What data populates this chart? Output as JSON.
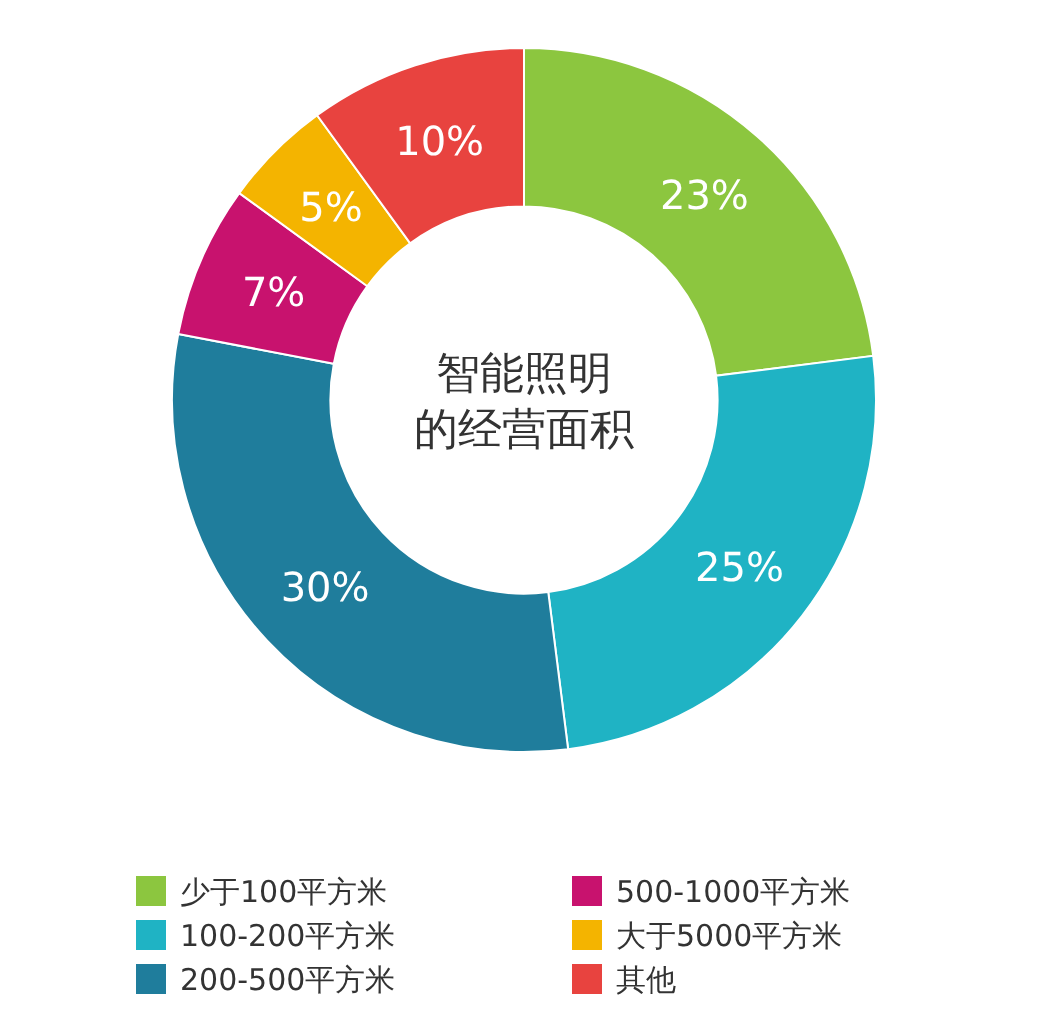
{
  "chart_data": {
    "type": "donut",
    "title": "智能照明的经营面积",
    "categories": [
      "少于100平方米",
      "100-200平方米",
      "200-500平方米",
      "500-1000平方米",
      "大于5000平方米",
      "其他"
    ],
    "values": [
      23,
      25,
      30,
      7,
      5,
      10
    ],
    "colors": [
      "#8cc63f",
      "#1fb3c4",
      "#1f7d9c",
      "#c8126e",
      "#f4b400",
      "#e8433f"
    ],
    "value_labels": [
      "23%",
      "25%",
      "30%",
      "7%",
      "5%",
      "10%"
    ],
    "legend": "bottom"
  }
}
